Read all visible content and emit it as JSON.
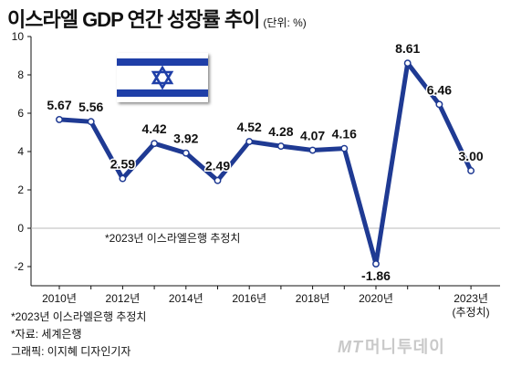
{
  "title": "이스라엘 GDP 연간 성장률 추이",
  "unit_label": "(단위: %)",
  "flag_name": "Israel flag",
  "colors": {
    "line": "#1f3a93",
    "marker_fill": "#ffffff",
    "grid": "#bbbbbb",
    "flag_blue": "#1f3fa8"
  },
  "chart_data": {
    "type": "line",
    "title": "이스라엘 GDP 연간 성장률 추이",
    "xlabel": "",
    "ylabel": "",
    "ylim": [
      -3,
      10
    ],
    "yticks": [
      -2,
      0,
      2,
      4,
      6,
      8,
      10
    ],
    "x": [
      2010,
      2011,
      2012,
      2013,
      2014,
      2015,
      2016,
      2017,
      2018,
      2019,
      2020,
      2021,
      2022,
      2023
    ],
    "xtick_labels": [
      {
        "x": 2010,
        "lines": [
          "2010년"
        ]
      },
      {
        "x": 2012,
        "lines": [
          "2012년"
        ]
      },
      {
        "x": 2014,
        "lines": [
          "2014년"
        ]
      },
      {
        "x": 2016,
        "lines": [
          "2016년"
        ]
      },
      {
        "x": 2018,
        "lines": [
          "2018년"
        ]
      },
      {
        "x": 2020,
        "lines": [
          "2020년"
        ]
      },
      {
        "x": 2023,
        "lines": [
          "2023년",
          "(추정치)"
        ]
      }
    ],
    "series": [
      {
        "values": [
          5.67,
          5.56,
          2.59,
          4.42,
          3.92,
          2.49,
          4.52,
          4.28,
          4.07,
          4.16,
          -1.86,
          8.61,
          6.46,
          3.0
        ],
        "labels": [
          "5.67",
          "5.56",
          "2.59",
          "4.42",
          "3.92",
          "2.49",
          "4.52",
          "4.28",
          "4.07",
          "4.16",
          "-1.86",
          "8.61",
          "6.46",
          "3.00"
        ]
      }
    ],
    "annotation": "*2023년 이스라엘은행 추정치",
    "grid": false
  },
  "footnotes": [
    "*2023년 이스라엘은행 추정치",
    "*자료: 세계은행",
    "그래픽: 이지혜 디자인기자"
  ],
  "logo": {
    "mark": "MT",
    "text": "머니투데이"
  }
}
